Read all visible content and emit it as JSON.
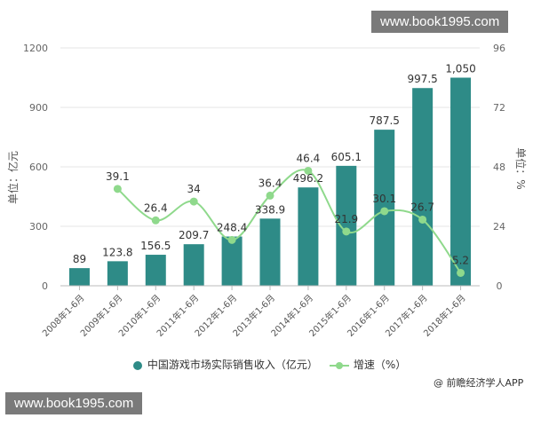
{
  "watermark_top": "www.book1995.com",
  "watermark_bottom": "www.book1995.com",
  "credit": "@ 前瞻经济学人APP",
  "chart_data": {
    "type": "bar",
    "categories": [
      "2008年1-6月",
      "2009年1-6月",
      "2010年1-6月",
      "2011年1-6月",
      "2012年1-6月",
      "2013年1-6月",
      "2014年1-6月",
      "2015年1-6月",
      "2016年1-6月",
      "2017年1-6月",
      "2018年1-6月"
    ],
    "series": [
      {
        "name": "中国游戏市场实际销售收入（亿元）",
        "type": "bar",
        "axis": "left",
        "values": [
          89,
          123.8,
          156.5,
          209.7,
          248.4,
          338.9,
          496.2,
          605.1,
          787.5,
          997.5,
          1050
        ],
        "labels": [
          "89",
          "123.8",
          "156.5",
          "209.7",
          "248.4",
          "338.9",
          "496.2",
          "605.1",
          "787.5",
          "997.5",
          "1,050"
        ],
        "color": "#2e8b87"
      },
      {
        "name": "增速（%）",
        "type": "line",
        "axis": "right",
        "values": [
          null,
          39.1,
          26.4,
          34,
          18.5,
          36.4,
          46.4,
          21.9,
          30.1,
          26.7,
          5.2
        ],
        "labels": [
          "",
          "39.1",
          "26.4",
          "34",
          "",
          "36.4",
          "46.4",
          "21.9",
          "30.1",
          "26.7",
          "5.2"
        ],
        "color": "#8fd98c"
      }
    ],
    "ylabel": "单位：亿元",
    "y2label": "单位：%",
    "ylim": [
      0,
      1200
    ],
    "yticks": [
      "0",
      "300",
      "600",
      "900",
      "1200"
    ],
    "y2lim": [
      0,
      96
    ],
    "y2ticks": [
      "0",
      "24",
      "48",
      "72",
      "96"
    ],
    "legend_position": "bottom"
  }
}
